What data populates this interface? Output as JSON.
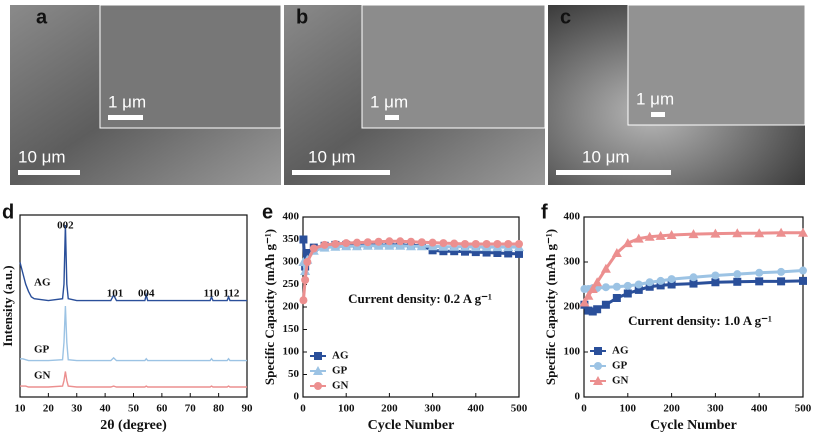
{
  "panels": [
    {
      "label": "a",
      "scale_bar": "10 μm",
      "inset_scale_bar": "1 μm"
    },
    {
      "label": "b",
      "scale_bar": "10 μm",
      "inset_scale_bar": "1 μm"
    },
    {
      "label": "c",
      "scale_bar": "10 μm",
      "inset_scale_bar": "1 μm"
    }
  ],
  "chart_data": [
    {
      "type": "line",
      "panel_label": "d",
      "xlabel": "2θ (degree)",
      "ylabel": "Intensity (a.u.)",
      "legend": "inline",
      "peak_labels": [
        "002",
        "101",
        "004",
        "110",
        "112"
      ],
      "x": [
        10,
        11,
        12,
        13,
        14,
        15,
        20,
        25,
        25.5,
        26,
        26.5,
        27,
        30,
        42,
        43,
        44,
        45,
        50,
        54,
        54.5,
        55,
        60,
        70,
        77,
        77.5,
        78,
        83,
        83.5,
        84,
        90
      ],
      "xlim": [
        10,
        90
      ],
      "xticks": [
        10,
        20,
        30,
        40,
        50,
        60,
        70,
        80,
        90
      ],
      "ylim": [
        0,
        100
      ],
      "series": [
        {
          "name": "AG",
          "color": "#2a4f9a",
          "values": [
            74,
            68,
            62,
            58,
            55,
            54,
            53,
            54,
            62,
            94.5,
            62,
            54,
            53,
            53,
            56,
            53,
            53,
            53,
            53,
            56,
            53,
            53,
            53,
            53,
            55,
            53,
            53,
            55,
            53,
            53
          ]
        },
        {
          "name": "GP",
          "color": "#9cc3e4",
          "values": [
            21,
            21,
            20.5,
            20,
            20,
            20,
            20,
            20.5,
            30,
            50,
            30,
            20.5,
            20,
            20,
            21.5,
            20,
            20,
            20,
            20,
            21,
            20,
            20,
            20,
            20,
            21,
            20,
            20,
            21,
            20,
            20
          ]
        },
        {
          "name": "GN",
          "color": "#ec8f8f",
          "values": [
            6,
            6,
            6,
            5.5,
            5.5,
            5.5,
            5.5,
            6,
            9,
            14,
            9,
            6,
            5.5,
            5.5,
            6,
            5.5,
            5.5,
            5.5,
            5.5,
            6,
            5.5,
            5.5,
            5.5,
            5.5,
            6,
            5.5,
            5.5,
            6,
            5.5,
            5.5
          ]
        }
      ]
    },
    {
      "type": "line",
      "panel_label": "e",
      "xlabel": "Cycle Number",
      "ylabel": "Specific Capacity (mAh g⁻¹)",
      "annotation": "Current density: 0.2 A g⁻¹",
      "legend": "lower left",
      "x": [
        1,
        5,
        10,
        25,
        50,
        75,
        100,
        125,
        150,
        175,
        200,
        225,
        250,
        275,
        300,
        325,
        350,
        375,
        400,
        425,
        450,
        475,
        500
      ],
      "xlim": [
        0,
        500
      ],
      "xticks": [
        0,
        100,
        200,
        300,
        400,
        500
      ],
      "ylim": [
        0,
        400
      ],
      "yticks": [
        0,
        50,
        100,
        150,
        200,
        250,
        300,
        350,
        400
      ],
      "series": [
        {
          "name": "AG",
          "color": "#2a4f9a",
          "marker": "square",
          "values": [
            350,
            290,
            320,
            332,
            336,
            338,
            338,
            337,
            338,
            337,
            338,
            338,
            337,
            336,
            326,
            324,
            324,
            323,
            322,
            321,
            320,
            319,
            318
          ]
        },
        {
          "name": "GP",
          "color": "#9cc3e4",
          "marker": "triangle",
          "values": [
            300,
            280,
            305,
            325,
            332,
            334,
            335,
            335,
            336,
            336,
            336,
            336,
            335,
            335,
            335,
            334,
            334,
            334,
            333,
            333,
            333,
            333,
            333
          ]
        },
        {
          "name": "GN",
          "color": "#ec8f8f",
          "marker": "circle",
          "values": [
            215,
            260,
            300,
            330,
            338,
            340,
            342,
            343,
            344,
            345,
            346,
            346,
            345,
            344,
            343,
            342,
            341,
            340,
            340,
            340,
            340,
            340,
            340
          ]
        }
      ]
    },
    {
      "type": "line",
      "panel_label": "f",
      "xlabel": "Cycle Number",
      "ylabel": "Specific Capacity (mAh g⁻¹)",
      "annotation": "Current density: 1.0 A g⁻¹",
      "legend": "lower left",
      "x": [
        1,
        10,
        20,
        30,
        50,
        75,
        100,
        125,
        150,
        175,
        200,
        250,
        300,
        350,
        400,
        450,
        500
      ],
      "xlim": [
        0,
        500
      ],
      "xticks": [
        0,
        100,
        200,
        300,
        400,
        500
      ],
      "ylim": [
        0,
        400
      ],
      "yticks": [
        0,
        100,
        200,
        300,
        400
      ],
      "series": [
        {
          "name": "AG",
          "color": "#2a4f9a",
          "marker": "square",
          "values": [
            205,
            192,
            190,
            195,
            205,
            220,
            230,
            238,
            245,
            248,
            250,
            252,
            255,
            256,
            257,
            257,
            258
          ]
        },
        {
          "name": "GP",
          "color": "#9cc3e4",
          "marker": "circle",
          "values": [
            240,
            240,
            242,
            242,
            244,
            245,
            247,
            250,
            255,
            258,
            262,
            266,
            270,
            273,
            276,
            278,
            281
          ]
        },
        {
          "name": "GN",
          "color": "#ec8f8f",
          "marker": "triangle",
          "values": [
            210,
            225,
            240,
            255,
            285,
            320,
            342,
            352,
            356,
            358,
            360,
            362,
            363,
            364,
            364,
            365,
            365
          ]
        }
      ]
    }
  ]
}
